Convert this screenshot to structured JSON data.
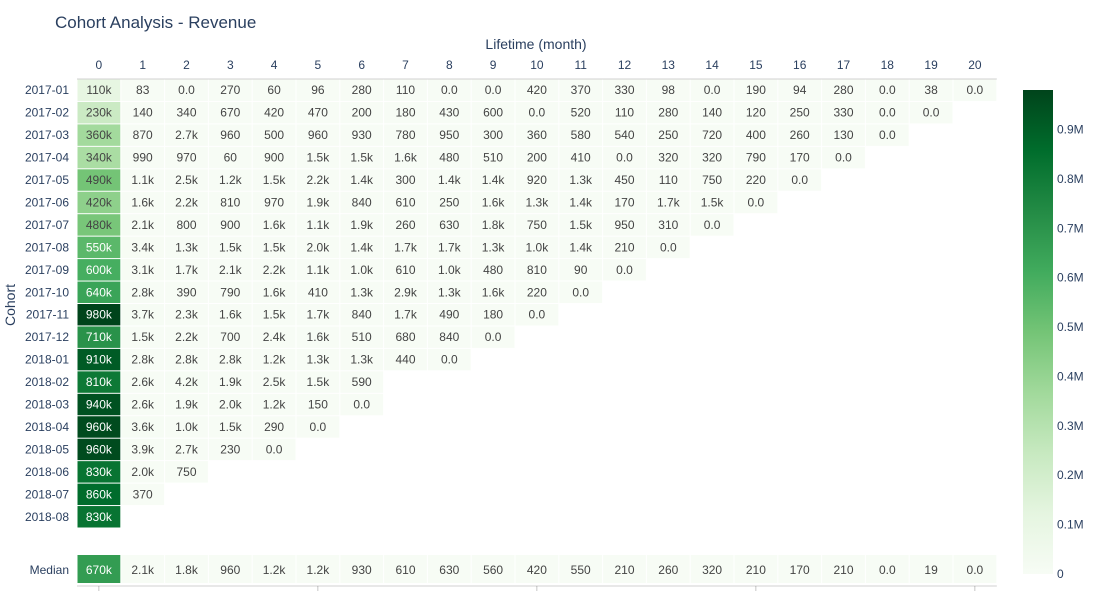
{
  "chart_data": {
    "type": "heatmap",
    "title": "Cohort Analysis - Revenue",
    "xlabel": "Lifetime (month)",
    "ylabel": "Cohort",
    "x": [
      "0",
      "1",
      "2",
      "3",
      "4",
      "5",
      "6",
      "7",
      "8",
      "9",
      "10",
      "11",
      "12",
      "13",
      "14",
      "15",
      "16",
      "17",
      "18",
      "19",
      "20"
    ],
    "y": [
      "2017-01",
      "2017-02",
      "2017-03",
      "2017-04",
      "2017-05",
      "2017-06",
      "2017-07",
      "2017-08",
      "2017-09",
      "2017-10",
      "2017-11",
      "2017-12",
      "2018-01",
      "2018-02",
      "2018-03",
      "2018-04",
      "2018-05",
      "2018-06",
      "2018-07",
      "2018-08"
    ],
    "cells": [
      {
        "label": "110k",
        "value": 110000
      },
      {
        "label": "83",
        "value": 83
      },
      {
        "label": "0.0",
        "value": 0
      },
      {
        "label": "270",
        "value": 270
      },
      {
        "label": "60",
        "value": 60
      },
      {
        "label": "96",
        "value": 96
      },
      {
        "label": "280",
        "value": 280
      },
      {
        "label": "110",
        "value": 110
      },
      {
        "label": "0.0",
        "value": 0
      },
      {
        "label": "0.0",
        "value": 0
      },
      {
        "label": "420",
        "value": 420
      },
      {
        "label": "370",
        "value": 370
      },
      {
        "label": "330",
        "value": 330
      },
      {
        "label": "98",
        "value": 98
      },
      {
        "label": "0.0",
        "value": 0
      },
      {
        "label": "190",
        "value": 190
      },
      {
        "label": "94",
        "value": 94
      },
      {
        "label": "280",
        "value": 280
      },
      {
        "label": "0.0",
        "value": 0
      },
      {
        "label": "38",
        "value": 38
      },
      {
        "label": "0.0",
        "value": 0
      },
      {
        "label": "230k",
        "value": 230000
      },
      {
        "label": "140",
        "value": 140
      },
      {
        "label": "340",
        "value": 340
      },
      {
        "label": "670",
        "value": 670
      },
      {
        "label": "420",
        "value": 420
      },
      {
        "label": "470",
        "value": 470
      },
      {
        "label": "200",
        "value": 200
      },
      {
        "label": "180",
        "value": 180
      },
      {
        "label": "430",
        "value": 430
      },
      {
        "label": "600",
        "value": 600
      },
      {
        "label": "0.0",
        "value": 0
      },
      {
        "label": "520",
        "value": 520
      },
      {
        "label": "110",
        "value": 110
      },
      {
        "label": "280",
        "value": 280
      },
      {
        "label": "140",
        "value": 140
      },
      {
        "label": "120",
        "value": 120
      },
      {
        "label": "250",
        "value": 250
      },
      {
        "label": "330",
        "value": 330
      },
      {
        "label": "0.0",
        "value": 0
      },
      {
        "label": "0.0",
        "value": 0
      },
      {
        "label": "360k",
        "value": 360000
      },
      {
        "label": "870",
        "value": 870
      },
      {
        "label": "2.7k",
        "value": 2700
      },
      {
        "label": "960",
        "value": 960
      },
      {
        "label": "500",
        "value": 500
      },
      {
        "label": "960",
        "value": 960
      },
      {
        "label": "930",
        "value": 930
      },
      {
        "label": "780",
        "value": 780
      },
      {
        "label": "950",
        "value": 950
      },
      {
        "label": "300",
        "value": 300
      },
      {
        "label": "360",
        "value": 360
      },
      {
        "label": "580",
        "value": 580
      },
      {
        "label": "540",
        "value": 540
      },
      {
        "label": "250",
        "value": 250
      },
      {
        "label": "720",
        "value": 720
      },
      {
        "label": "400",
        "value": 400
      },
      {
        "label": "260",
        "value": 260
      },
      {
        "label": "130",
        "value": 130
      },
      {
        "label": "0.0",
        "value": 0
      },
      {
        "label": "340k",
        "value": 340000
      },
      {
        "label": "990",
        "value": 990
      },
      {
        "label": "970",
        "value": 970
      },
      {
        "label": "60",
        "value": 60
      },
      {
        "label": "900",
        "value": 900
      },
      {
        "label": "1.5k",
        "value": 1500
      },
      {
        "label": "1.5k",
        "value": 1500
      },
      {
        "label": "1.6k",
        "value": 1600
      },
      {
        "label": "480",
        "value": 480
      },
      {
        "label": "510",
        "value": 510
      },
      {
        "label": "200",
        "value": 200
      },
      {
        "label": "410",
        "value": 410
      },
      {
        "label": "0.0",
        "value": 0
      },
      {
        "label": "320",
        "value": 320
      },
      {
        "label": "320",
        "value": 320
      },
      {
        "label": "790",
        "value": 790
      },
      {
        "label": "170",
        "value": 170
      },
      {
        "label": "0.0",
        "value": 0
      },
      {
        "label": "490k",
        "value": 490000
      },
      {
        "label": "1.1k",
        "value": 1100
      },
      {
        "label": "2.5k",
        "value": 2500
      },
      {
        "label": "1.2k",
        "value": 1200
      },
      {
        "label": "1.5k",
        "value": 1500
      },
      {
        "label": "2.2k",
        "value": 2200
      },
      {
        "label": "1.4k",
        "value": 1400
      },
      {
        "label": "300",
        "value": 300
      },
      {
        "label": "1.4k",
        "value": 1400
      },
      {
        "label": "1.4k",
        "value": 1400
      },
      {
        "label": "920",
        "value": 920
      },
      {
        "label": "1.3k",
        "value": 1300
      },
      {
        "label": "450",
        "value": 450
      },
      {
        "label": "110",
        "value": 110
      },
      {
        "label": "750",
        "value": 750
      },
      {
        "label": "220",
        "value": 220
      },
      {
        "label": "0.0",
        "value": 0
      },
      {
        "label": "420k",
        "value": 420000
      },
      {
        "label": "1.6k",
        "value": 1600
      },
      {
        "label": "2.2k",
        "value": 2200
      },
      {
        "label": "810",
        "value": 810
      },
      {
        "label": "970",
        "value": 970
      },
      {
        "label": "1.9k",
        "value": 1900
      },
      {
        "label": "840",
        "value": 840
      },
      {
        "label": "610",
        "value": 610
      },
      {
        "label": "250",
        "value": 250
      },
      {
        "label": "1.6k",
        "value": 1600
      },
      {
        "label": "1.3k",
        "value": 1300
      },
      {
        "label": "1.4k",
        "value": 1400
      },
      {
        "label": "170",
        "value": 170
      },
      {
        "label": "1.7k",
        "value": 1700
      },
      {
        "label": "1.5k",
        "value": 1500
      },
      {
        "label": "0.0",
        "value": 0
      },
      {
        "label": "480k",
        "value": 480000
      },
      {
        "label": "2.1k",
        "value": 2100
      },
      {
        "label": "800",
        "value": 800
      },
      {
        "label": "900",
        "value": 900
      },
      {
        "label": "1.6k",
        "value": 1600
      },
      {
        "label": "1.1k",
        "value": 1100
      },
      {
        "label": "1.9k",
        "value": 1900
      },
      {
        "label": "260",
        "value": 260
      },
      {
        "label": "630",
        "value": 630
      },
      {
        "label": "1.8k",
        "value": 1800
      },
      {
        "label": "750",
        "value": 750
      },
      {
        "label": "1.5k",
        "value": 1500
      },
      {
        "label": "950",
        "value": 950
      },
      {
        "label": "310",
        "value": 310
      },
      {
        "label": "0.0",
        "value": 0
      },
      {
        "label": "550k",
        "value": 550000
      },
      {
        "label": "3.4k",
        "value": 3400
      },
      {
        "label": "1.3k",
        "value": 1300
      },
      {
        "label": "1.5k",
        "value": 1500
      },
      {
        "label": "1.5k",
        "value": 1500
      },
      {
        "label": "2.0k",
        "value": 2000
      },
      {
        "label": "1.4k",
        "value": 1400
      },
      {
        "label": "1.7k",
        "value": 1700
      },
      {
        "label": "1.7k",
        "value": 1700
      },
      {
        "label": "1.3k",
        "value": 1300
      },
      {
        "label": "1.0k",
        "value": 1000
      },
      {
        "label": "1.4k",
        "value": 1400
      },
      {
        "label": "210",
        "value": 210
      },
      {
        "label": "0.0",
        "value": 0
      },
      {
        "label": "600k",
        "value": 600000
      },
      {
        "label": "3.1k",
        "value": 3100
      },
      {
        "label": "1.7k",
        "value": 1700
      },
      {
        "label": "2.1k",
        "value": 2100
      },
      {
        "label": "2.2k",
        "value": 2200
      },
      {
        "label": "1.1k",
        "value": 1100
      },
      {
        "label": "1.0k",
        "value": 1000
      },
      {
        "label": "610",
        "value": 610
      },
      {
        "label": "1.0k",
        "value": 1000
      },
      {
        "label": "480",
        "value": 480
      },
      {
        "label": "810",
        "value": 810
      },
      {
        "label": "90",
        "value": 90
      },
      {
        "label": "0.0",
        "value": 0
      },
      {
        "label": "640k",
        "value": 640000
      },
      {
        "label": "2.8k",
        "value": 2800
      },
      {
        "label": "390",
        "value": 390
      },
      {
        "label": "790",
        "value": 790
      },
      {
        "label": "1.6k",
        "value": 1600
      },
      {
        "label": "410",
        "value": 410
      },
      {
        "label": "1.3k",
        "value": 1300
      },
      {
        "label": "2.9k",
        "value": 2900
      },
      {
        "label": "1.3k",
        "value": 1300
      },
      {
        "label": "1.6k",
        "value": 1600
      },
      {
        "label": "220",
        "value": 220
      },
      {
        "label": "0.0",
        "value": 0
      },
      {
        "label": "980k",
        "value": 980000
      },
      {
        "label": "3.7k",
        "value": 3700
      },
      {
        "label": "2.3k",
        "value": 2300
      },
      {
        "label": "1.6k",
        "value": 1600
      },
      {
        "label": "1.5k",
        "value": 1500
      },
      {
        "label": "1.7k",
        "value": 1700
      },
      {
        "label": "840",
        "value": 840
      },
      {
        "label": "1.7k",
        "value": 1700
      },
      {
        "label": "490",
        "value": 490
      },
      {
        "label": "180",
        "value": 180
      },
      {
        "label": "0.0",
        "value": 0
      },
      {
        "label": "710k",
        "value": 710000
      },
      {
        "label": "1.5k",
        "value": 1500
      },
      {
        "label": "2.2k",
        "value": 2200
      },
      {
        "label": "700",
        "value": 700
      },
      {
        "label": "2.4k",
        "value": 2400
      },
      {
        "label": "1.6k",
        "value": 1600
      },
      {
        "label": "510",
        "value": 510
      },
      {
        "label": "680",
        "value": 680
      },
      {
        "label": "840",
        "value": 840
      },
      {
        "label": "0.0",
        "value": 0
      },
      {
        "label": "910k",
        "value": 910000
      },
      {
        "label": "2.8k",
        "value": 2800
      },
      {
        "label": "2.8k",
        "value": 2800
      },
      {
        "label": "2.8k",
        "value": 2800
      },
      {
        "label": "1.2k",
        "value": 1200
      },
      {
        "label": "1.3k",
        "value": 1300
      },
      {
        "label": "1.3k",
        "value": 1300
      },
      {
        "label": "440",
        "value": 440
      },
      {
        "label": "0.0",
        "value": 0
      },
      {
        "label": "810k",
        "value": 810000
      },
      {
        "label": "2.6k",
        "value": 2600
      },
      {
        "label": "4.2k",
        "value": 4200
      },
      {
        "label": "1.9k",
        "value": 1900
      },
      {
        "label": "2.5k",
        "value": 2500
      },
      {
        "label": "1.5k",
        "value": 1500
      },
      {
        "label": "590",
        "value": 590
      },
      {
        "label": "940k",
        "value": 940000
      },
      {
        "label": "2.6k",
        "value": 2600
      },
      {
        "label": "1.9k",
        "value": 1900
      },
      {
        "label": "2.0k",
        "value": 2000
      },
      {
        "label": "1.2k",
        "value": 1200
      },
      {
        "label": "150",
        "value": 150
      },
      {
        "label": "0.0",
        "value": 0
      },
      {
        "label": "960k",
        "value": 960000
      },
      {
        "label": "3.6k",
        "value": 3600
      },
      {
        "label": "1.0k",
        "value": 1000
      },
      {
        "label": "1.5k",
        "value": 1500
      },
      {
        "label": "290",
        "value": 290
      },
      {
        "label": "0.0",
        "value": 0
      },
      {
        "label": "960k",
        "value": 960000
      },
      {
        "label": "3.9k",
        "value": 3900
      },
      {
        "label": "2.7k",
        "value": 2700
      },
      {
        "label": "230",
        "value": 230
      },
      {
        "label": "0.0",
        "value": 0
      },
      {
        "label": "830k",
        "value": 830000
      },
      {
        "label": "2.0k",
        "value": 2000
      },
      {
        "label": "750",
        "value": 750
      },
      {
        "label": "860k",
        "value": 860000
      },
      {
        "label": "370",
        "value": 370
      },
      {
        "label": "830k",
        "value": 830000
      }
    ],
    "row_lengths": [
      21,
      20,
      19,
      18,
      17,
      16,
      15,
      14,
      13,
      12,
      11,
      10,
      9,
      7,
      7,
      6,
      5,
      3,
      2,
      1
    ],
    "summary_row": {
      "label": "Median",
      "cells": [
        {
          "label": "670k",
          "value": 670000
        },
        {
          "label": "2.1k",
          "value": 2100
        },
        {
          "label": "1.8k",
          "value": 1800
        },
        {
          "label": "960",
          "value": 960
        },
        {
          "label": "1.2k",
          "value": 1200
        },
        {
          "label": "1.2k",
          "value": 1200
        },
        {
          "label": "930",
          "value": 930
        },
        {
          "label": "610",
          "value": 610
        },
        {
          "label": "630",
          "value": 630
        },
        {
          "label": "560",
          "value": 560
        },
        {
          "label": "420",
          "value": 420
        },
        {
          "label": "550",
          "value": 550
        },
        {
          "label": "210",
          "value": 210
        },
        {
          "label": "260",
          "value": 260
        },
        {
          "label": "320",
          "value": 320
        },
        {
          "label": "210",
          "value": 210
        },
        {
          "label": "170",
          "value": 170
        },
        {
          "label": "210",
          "value": 210
        },
        {
          "label": "0.0",
          "value": 0
        },
        {
          "label": "19",
          "value": 19
        },
        {
          "label": "0.0",
          "value": 0
        }
      ]
    },
    "colorscale": "Greens",
    "zlim": [
      0,
      980000
    ],
    "colorbar_ticks": [
      {
        "value": 0,
        "label": "0"
      },
      {
        "value": 100000,
        "label": "0.1M"
      },
      {
        "value": 200000,
        "label": "0.2M"
      },
      {
        "value": 300000,
        "label": "0.3M"
      },
      {
        "value": 400000,
        "label": "0.4M"
      },
      {
        "value": 500000,
        "label": "0.5M"
      },
      {
        "value": 600000,
        "label": "0.6M"
      },
      {
        "value": 700000,
        "label": "0.7M"
      },
      {
        "value": 800000,
        "label": "0.8M"
      },
      {
        "value": 900000,
        "label": "0.9M"
      }
    ]
  }
}
